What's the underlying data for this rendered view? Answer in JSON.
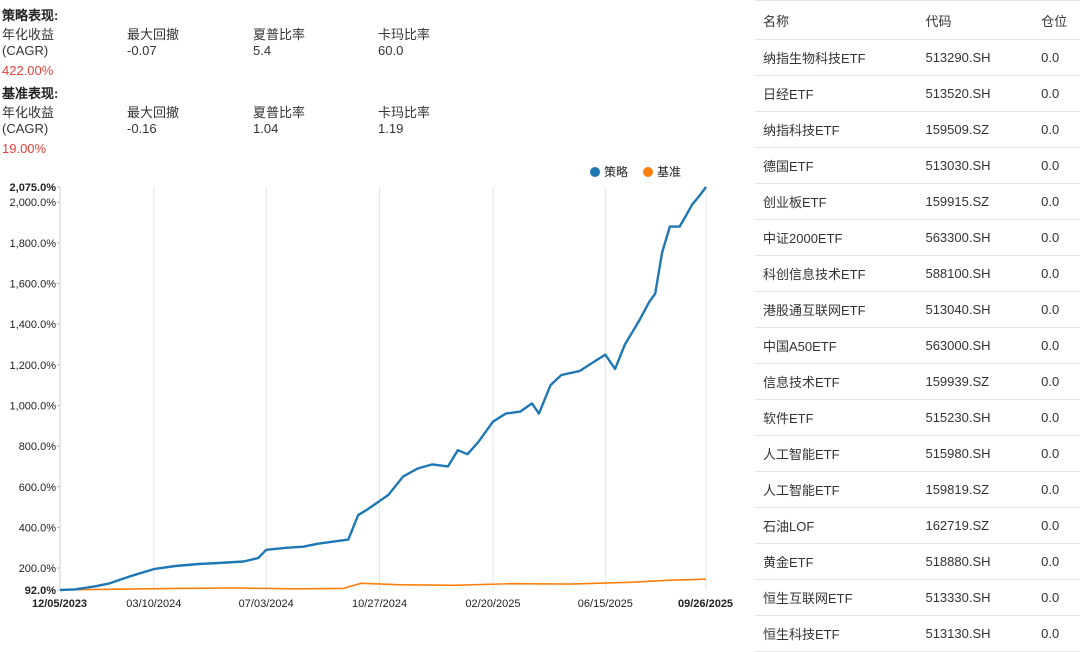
{
  "strategy": {
    "title": "策略表现:",
    "metrics": [
      {
        "label_line1": "年化收益",
        "label_line2": "(CAGR)",
        "value": "422.00%"
      },
      {
        "label": "最大回撤",
        "value": "-0.07"
      },
      {
        "label": "夏普比率",
        "value": "5.4"
      },
      {
        "label": "卡玛比率",
        "value": "60.0"
      }
    ]
  },
  "benchmark": {
    "title": "基准表现:",
    "metrics": [
      {
        "label_line1": "年化收益",
        "label_line2": "(CAGR)",
        "value": "19.00%"
      },
      {
        "label": "最大回撤",
        "value": "-0.16"
      },
      {
        "label": "夏普比率",
        "value": "1.04"
      },
      {
        "label": "卡玛比率",
        "value": "1.19"
      }
    ]
  },
  "chart_data": {
    "type": "line",
    "legend": [
      "策略",
      "基准"
    ],
    "legend_position": "top-right",
    "colors": {
      "strategy": "#1f77b4",
      "benchmark": "#ff7f0e"
    },
    "y_ticks": [
      "92.0%",
      "200.0%",
      "400.0%",
      "600.0%",
      "800.0%",
      "1,000.0%",
      "1,200.0%",
      "1,400.0%",
      "1,600.0%",
      "1,800.0%",
      "2,000.0%",
      "2,075.0%"
    ],
    "x_ticks": [
      "12/05/2023",
      "03/10/2024",
      "07/03/2024",
      "10/27/2024",
      "02/20/2025",
      "06/15/2025",
      "09/26/2025"
    ],
    "ylim": [
      92,
      2075
    ],
    "xlim": [
      "2023-12-05",
      "2025-09-26"
    ],
    "grid": "vertical",
    "series": [
      {
        "name": "策略",
        "points": [
          [
            "2023-12-05",
            92
          ],
          [
            "2023-12-20",
            95
          ],
          [
            "2024-01-10",
            110
          ],
          [
            "2024-01-25",
            125
          ],
          [
            "2024-02-15",
            160
          ],
          [
            "2024-03-10",
            195
          ],
          [
            "2024-04-01",
            210
          ],
          [
            "2024-04-25",
            220
          ],
          [
            "2024-05-15",
            225
          ],
          [
            "2024-06-10",
            232
          ],
          [
            "2024-06-25",
            250
          ],
          [
            "2024-07-03",
            290
          ],
          [
            "2024-07-25",
            300
          ],
          [
            "2024-08-10",
            305
          ],
          [
            "2024-08-25",
            320
          ],
          [
            "2024-09-10",
            330
          ],
          [
            "2024-09-25",
            340
          ],
          [
            "2024-10-05",
            460
          ],
          [
            "2024-10-15",
            490
          ],
          [
            "2024-10-27",
            530
          ],
          [
            "2024-11-05",
            560
          ],
          [
            "2024-11-20",
            650
          ],
          [
            "2024-12-05",
            690
          ],
          [
            "2024-12-20",
            710
          ],
          [
            "2025-01-05",
            700
          ],
          [
            "2025-01-15",
            780
          ],
          [
            "2025-01-25",
            760
          ],
          [
            "2025-02-05",
            820
          ],
          [
            "2025-02-20",
            920
          ],
          [
            "2025-03-05",
            960
          ],
          [
            "2025-03-20",
            970
          ],
          [
            "2025-04-01",
            1010
          ],
          [
            "2025-04-08",
            960
          ],
          [
            "2025-04-20",
            1100
          ],
          [
            "2025-05-01",
            1150
          ],
          [
            "2025-05-20",
            1170
          ],
          [
            "2025-06-05",
            1220
          ],
          [
            "2025-06-15",
            1250
          ],
          [
            "2025-06-25",
            1180
          ],
          [
            "2025-07-05",
            1300
          ],
          [
            "2025-07-20",
            1420
          ],
          [
            "2025-07-30",
            1510
          ],
          [
            "2025-08-05",
            1550
          ],
          [
            "2025-08-12",
            1750
          ],
          [
            "2025-08-20",
            1880
          ],
          [
            "2025-08-30",
            1880
          ],
          [
            "2025-09-05",
            1930
          ],
          [
            "2025-09-12",
            1990
          ],
          [
            "2025-09-19",
            2030
          ],
          [
            "2025-09-26",
            2075
          ]
        ]
      },
      {
        "name": "基准",
        "points": [
          [
            "2023-12-05",
            92
          ],
          [
            "2024-02-01",
            96
          ],
          [
            "2024-04-01",
            100
          ],
          [
            "2024-06-01",
            102
          ],
          [
            "2024-08-01",
            98
          ],
          [
            "2024-09-20",
            100
          ],
          [
            "2024-10-08",
            125
          ],
          [
            "2024-11-15",
            118
          ],
          [
            "2025-01-10",
            115
          ],
          [
            "2025-03-10",
            123
          ],
          [
            "2025-05-10",
            121
          ],
          [
            "2025-07-10",
            130
          ],
          [
            "2025-08-20",
            140
          ],
          [
            "2025-09-26",
            145
          ]
        ]
      }
    ]
  },
  "holdings": {
    "headers": {
      "name": "名称",
      "code": "代码",
      "position": "仓位"
    },
    "rows": [
      {
        "name": "纳指生物科技ETF",
        "code": "513290.SH",
        "position": "0.0"
      },
      {
        "name": "日经ETF",
        "code": "513520.SH",
        "position": "0.0"
      },
      {
        "name": "纳指科技ETF",
        "code": "159509.SZ",
        "position": "0.0"
      },
      {
        "name": "德国ETF",
        "code": "513030.SH",
        "position": "0.0"
      },
      {
        "name": "创业板ETF",
        "code": "159915.SZ",
        "position": "0.0"
      },
      {
        "name": "中证2000ETF",
        "code": "563300.SH",
        "position": "0.0"
      },
      {
        "name": "科创信息技术ETF",
        "code": "588100.SH",
        "position": "0.0"
      },
      {
        "name": "港股通互联网ETF",
        "code": "513040.SH",
        "position": "0.0"
      },
      {
        "name": "中国A50ETF",
        "code": "563000.SH",
        "position": "0.0"
      },
      {
        "name": "信息技术ETF",
        "code": "159939.SZ",
        "position": "0.0"
      },
      {
        "name": "软件ETF",
        "code": "515230.SH",
        "position": "0.0"
      },
      {
        "name": "人工智能ETF",
        "code": "515980.SH",
        "position": "0.0"
      },
      {
        "name": "人工智能ETF",
        "code": "159819.SZ",
        "position": "0.0"
      },
      {
        "name": "石油LOF",
        "code": "162719.SZ",
        "position": "0.0"
      },
      {
        "name": "黄金ETF",
        "code": "518880.SH",
        "position": "0.0"
      },
      {
        "name": "恒生互联网ETF",
        "code": "513330.SH",
        "position": "0.0"
      },
      {
        "name": "恒生科技ETF",
        "code": "513130.SH",
        "position": "0.0"
      }
    ]
  }
}
